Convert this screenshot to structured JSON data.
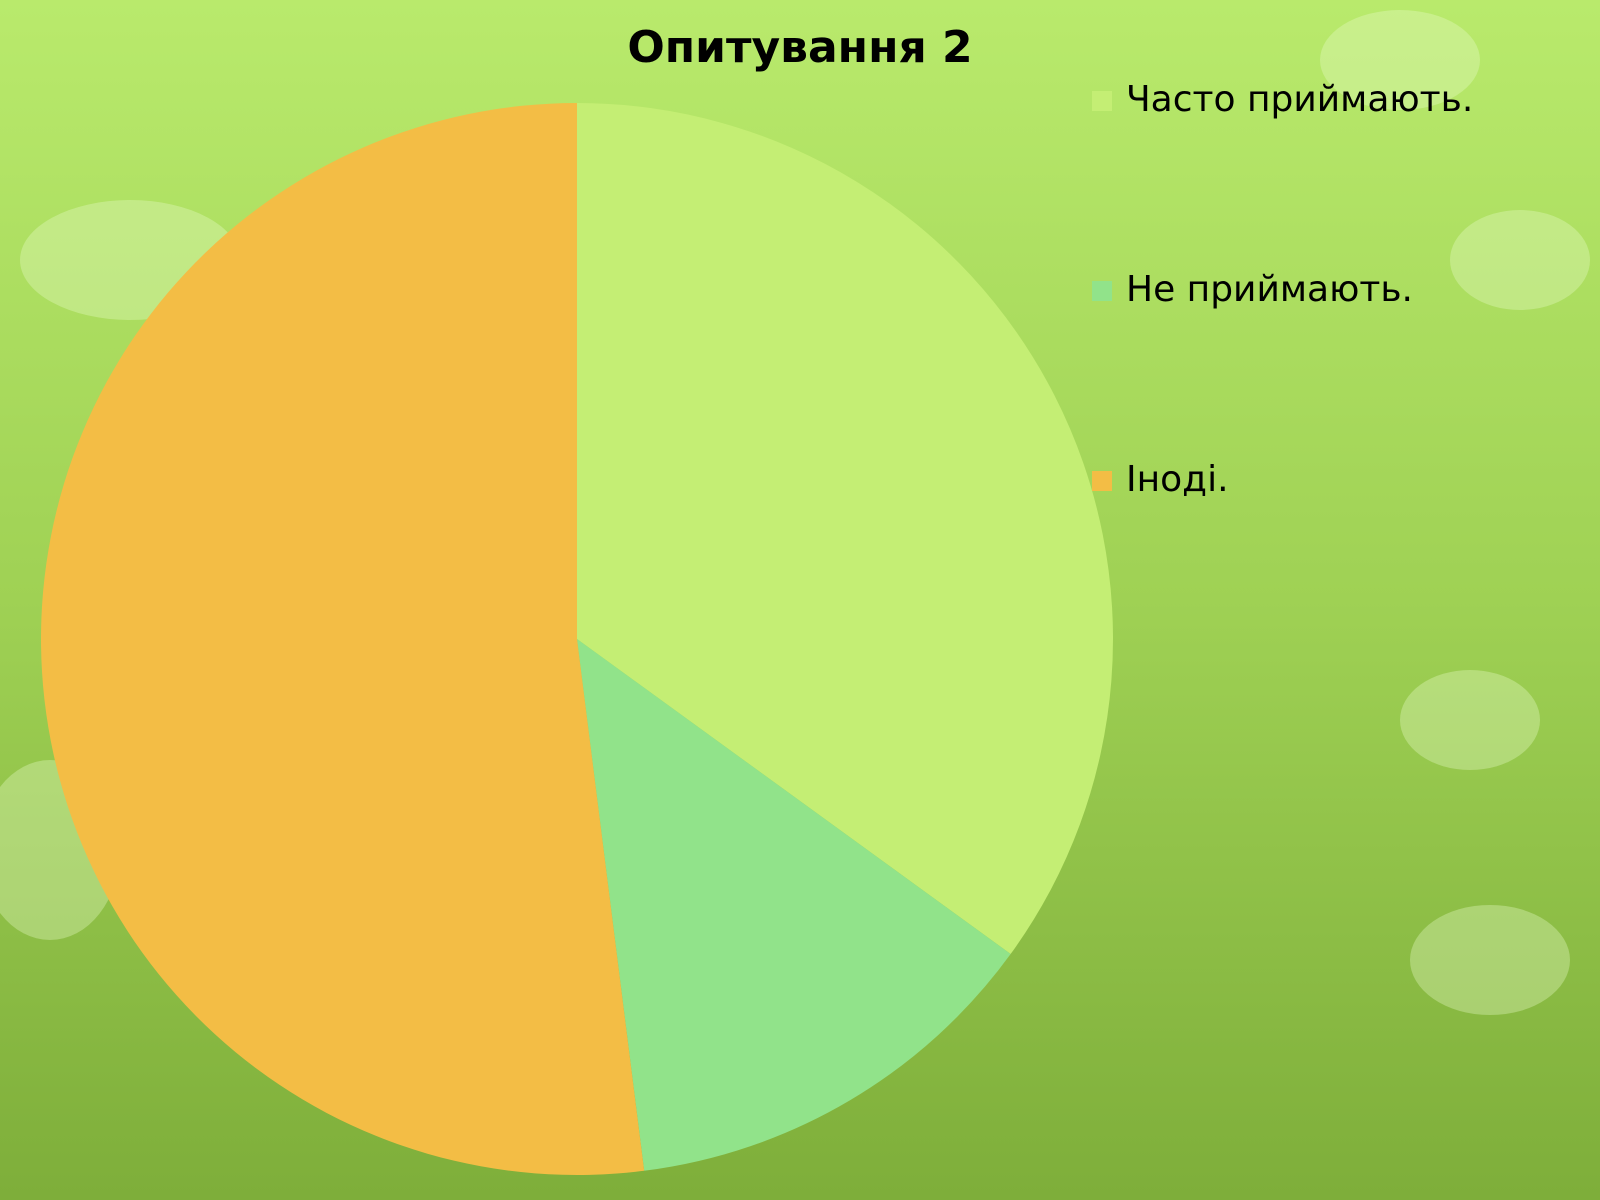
{
  "chart_data": {
    "type": "pie",
    "title": "Опитування 2",
    "categories": [
      "Часто приймають.",
      "Не приймають.",
      "Іноді."
    ],
    "values": [
      35,
      13,
      52
    ],
    "colors": [
      "#c4ee74",
      "#91e38a",
      "#f3bd45"
    ],
    "legend": "right"
  }
}
